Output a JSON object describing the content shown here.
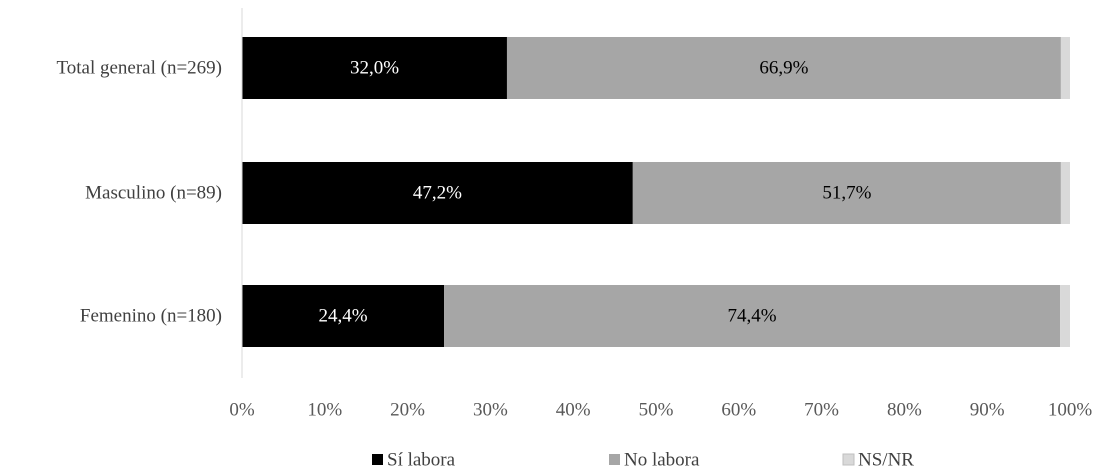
{
  "chart_data": {
    "type": "bar",
    "orientation": "horizontal",
    "stacked": true,
    "categories": [
      "Total general (n=269)",
      "Masculino (n=89)",
      "Femenino (n=180)"
    ],
    "series": [
      {
        "name": "Sí labora",
        "color": "#000000",
        "values": [
          32.0,
          47.2,
          24.4
        ],
        "labels": [
          "32,0%",
          "47,2%",
          "24,4%"
        ],
        "label_color": "#ffffff"
      },
      {
        "name": "No labora",
        "color": "#a6a6a6",
        "values": [
          66.9,
          51.7,
          74.4
        ],
        "labels": [
          "66,9%",
          "51,7%",
          "74,4%"
        ],
        "label_color": "#000000"
      },
      {
        "name": "NS/NR",
        "color": "#d9d9d9",
        "values": [
          1.1,
          1.1,
          1.2
        ],
        "labels": [
          "",
          "",
          ""
        ],
        "label_color": "#000000"
      }
    ],
    "xlim": [
      0,
      100
    ],
    "x_ticks": [
      "0%",
      "10%",
      "20%",
      "30%",
      "40%",
      "50%",
      "60%",
      "70%",
      "80%",
      "90%",
      "100%"
    ],
    "title": "",
    "xlabel": "",
    "ylabel": "",
    "grid": false,
    "legend_position": "bottom"
  }
}
